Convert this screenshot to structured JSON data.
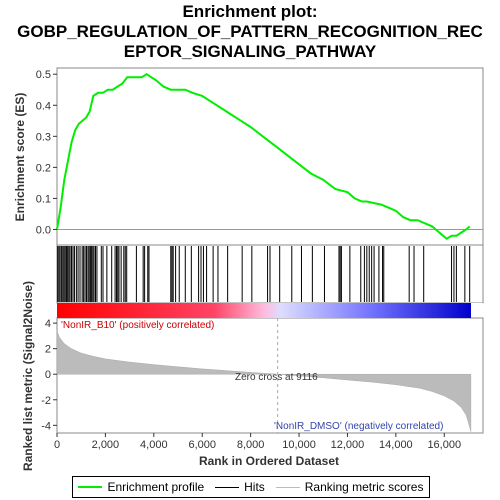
{
  "title": "Enrichment plot:\nGOBP_REGULATION_OF_PATTERN_RECOGNITION_REC\nEPTOR_SIGNALING_PATHWAY",
  "legend": {
    "profile": "Enrichment profile",
    "hits": "Hits",
    "ranking": "Ranking metric scores"
  },
  "colors": {
    "profile": "#00ee00",
    "hits": "#000000",
    "ranking": "#bbbbbb",
    "positive": "#ff0000",
    "negative": "#0000ff"
  },
  "chart_data": [
    {
      "type": "line",
      "name": "enrichment",
      "ylabel": "Enrichment score (ES)",
      "ylim": [
        -0.05,
        0.52
      ],
      "yticks": [
        "0.0",
        "0.1",
        "0.2",
        "0.3",
        "0.4",
        "0.5"
      ],
      "grid": false,
      "x": [
        0,
        150,
        300,
        450,
        600,
        750,
        900,
        1050,
        1200,
        1350,
        1500,
        1700,
        1900,
        2100,
        2300,
        2500,
        2700,
        2900,
        3100,
        3300,
        3500,
        3700,
        3900,
        4100,
        4400,
        4700,
        5000,
        5300,
        5600,
        6000,
        6400,
        6800,
        7200,
        7600,
        8000,
        8500,
        9000,
        9500,
        10000,
        10500,
        11000,
        11500,
        12000,
        12300,
        12600,
        12800,
        13100,
        13400,
        13700,
        14000,
        14300,
        14600,
        14900,
        15200,
        15500,
        15800,
        16100,
        16300,
        16500,
        16700,
        16900,
        17050
      ],
      "y": [
        0.0,
        0.07,
        0.16,
        0.22,
        0.28,
        0.32,
        0.34,
        0.35,
        0.36,
        0.38,
        0.43,
        0.44,
        0.44,
        0.45,
        0.45,
        0.46,
        0.47,
        0.49,
        0.49,
        0.49,
        0.49,
        0.5,
        0.49,
        0.48,
        0.46,
        0.45,
        0.45,
        0.45,
        0.44,
        0.43,
        0.41,
        0.39,
        0.37,
        0.35,
        0.33,
        0.3,
        0.27,
        0.24,
        0.21,
        0.18,
        0.16,
        0.13,
        0.12,
        0.1,
        0.09,
        0.09,
        0.085,
        0.08,
        0.07,
        0.06,
        0.04,
        0.03,
        0.03,
        0.02,
        0.01,
        -0.01,
        -0.03,
        -0.02,
        -0.02,
        -0.01,
        0.0,
        0.01
      ]
    },
    {
      "type": "scatter",
      "name": "hits",
      "x": [
        30,
        80,
        130,
        190,
        240,
        290,
        340,
        390,
        440,
        490,
        540,
        600,
        660,
        720,
        800,
        870,
        950,
        1040,
        1100,
        1160,
        1220,
        1280,
        1330,
        1380,
        1430,
        1480,
        1530,
        1590,
        1650,
        1830,
        1900,
        2060,
        2260,
        2400,
        2460,
        2510,
        2560,
        2650,
        2760,
        2820,
        2880,
        3280,
        3560,
        3620,
        3750,
        3800,
        4700,
        4750,
        4800,
        4900,
        5050,
        5300,
        5550,
        5850,
        5950,
        6050,
        6180,
        6450,
        6650,
        7050,
        7650,
        8050,
        8700,
        8800,
        9200,
        9700,
        10100,
        10550,
        11050,
        11650,
        11700,
        11750,
        12100,
        12550,
        12700,
        12800,
        12900,
        13000,
        13100,
        13300,
        13450,
        13500,
        14550,
        14750,
        15150,
        16300,
        16400,
        16500,
        16850,
        17050
      ]
    },
    {
      "type": "area",
      "name": "ranking",
      "xlabel": "Rank in Ordered Dataset",
      "ylabel": "Ranked list metric (Signal2Noise)",
      "ylim": [
        -4.6,
        4.4
      ],
      "yticks": [
        "-4",
        "-2",
        "0",
        "2",
        "4"
      ],
      "xlim": [
        0,
        17600
      ],
      "xticks": [
        "0",
        "2,000",
        "4,000",
        "6,000",
        "8,000",
        "10,000",
        "12,000",
        "14,000",
        "16,000"
      ],
      "x": [
        0,
        100,
        300,
        600,
        1000,
        1500,
        2000,
        3000,
        4000,
        5000,
        6000,
        7000,
        8000,
        9116,
        10000,
        11000,
        12000,
        13000,
        14000,
        15000,
        15500,
        16000,
        16400,
        16700,
        16900,
        17000,
        17100
      ],
      "y": [
        3.4,
        2.9,
        2.4,
        2.0,
        1.65,
        1.4,
        1.2,
        0.95,
        0.75,
        0.58,
        0.42,
        0.28,
        0.14,
        0.0,
        -0.12,
        -0.28,
        -0.45,
        -0.62,
        -0.82,
        -1.1,
        -1.35,
        -1.7,
        -2.1,
        -2.6,
        -3.2,
        -3.8,
        -4.5
      ],
      "zero_cross_rank": 9116,
      "annotations": {
        "positive": "'NonIR_B10' (positively correlated)",
        "negative": "'NonIR_DMSO' (negatively correlated)",
        "zero_cross": "Zero cross at 9116"
      }
    }
  ]
}
